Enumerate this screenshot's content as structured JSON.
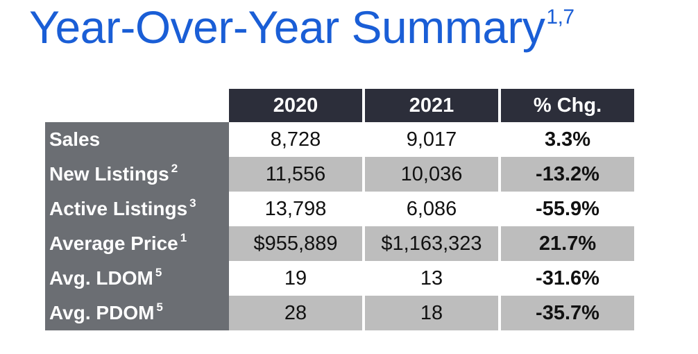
{
  "title": {
    "text": "Year-Over-Year Summary",
    "superscript": "1,7"
  },
  "table": {
    "headers": [
      "2020",
      "2021",
      "% Chg."
    ],
    "rows": [
      {
        "label": "Sales",
        "sup": "",
        "y2020": "8,728",
        "y2021": "9,017",
        "chg": "3.3%"
      },
      {
        "label": "New Listings",
        "sup": "2",
        "y2020": "11,556",
        "y2021": "10,036",
        "chg": "-13.2%"
      },
      {
        "label": "Active Listings",
        "sup": "3",
        "y2020": "13,798",
        "y2021": "6,086",
        "chg": "-55.9%"
      },
      {
        "label": "Average Price",
        "sup": "1",
        "y2020": "$955,889",
        "y2021": "$1,163,323",
        "chg": "21.7%"
      },
      {
        "label": "Avg. LDOM",
        "sup": "5",
        "y2020": "19",
        "y2021": "13",
        "chg": "-31.6%"
      },
      {
        "label": "Avg. PDOM",
        "sup": "5",
        "y2020": "28",
        "y2021": "18",
        "chg": "-35.7%"
      }
    ]
  },
  "colors": {
    "title": "#1a5ed6",
    "header_bg": "#2c2e3a",
    "label_bg": "#6b6e73",
    "shaded_row": "#bdbdbd"
  }
}
